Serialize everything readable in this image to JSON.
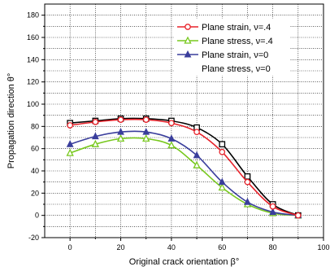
{
  "chart_data": {
    "type": "line",
    "title": "",
    "xlabel": "Original crack orientation β°",
    "ylabel": "Propagation direction θ°",
    "xlim": [
      -10,
      100
    ],
    "ylim": [
      -20,
      190
    ],
    "xticks": [
      0,
      20,
      40,
      60,
      80,
      100
    ],
    "yticks": [
      -20,
      0,
      20,
      40,
      60,
      80,
      100,
      120,
      140,
      160,
      180
    ],
    "grid": true,
    "legend_position": "top-right",
    "x": [
      0,
      10,
      20,
      30,
      40,
      50,
      60,
      70,
      80,
      90
    ],
    "series": [
      {
        "name": "Plane strain, ν=.4",
        "color": "#e8222a",
        "marker": "circle-open",
        "values": [
          81,
          84,
          86,
          86,
          83,
          75,
          57,
          30,
          8,
          0
        ]
      },
      {
        "name": "Plane stress, ν=.4",
        "color": "#78c81e",
        "marker": "triangle-open",
        "values": [
          56,
          64,
          69,
          69,
          63,
          45,
          25,
          10,
          2,
          0
        ]
      },
      {
        "name": "Plane strain, ν=0",
        "color": "#3a3e9c",
        "marker": "triangle-filled",
        "values": [
          64,
          71,
          75,
          75,
          69,
          54,
          30,
          12,
          3,
          0
        ]
      },
      {
        "name": "Plane stress, ν=0",
        "color": "#000000",
        "marker": "square-open",
        "values": [
          83,
          85,
          87,
          87,
          85,
          79,
          64,
          35,
          10,
          0
        ]
      }
    ]
  }
}
